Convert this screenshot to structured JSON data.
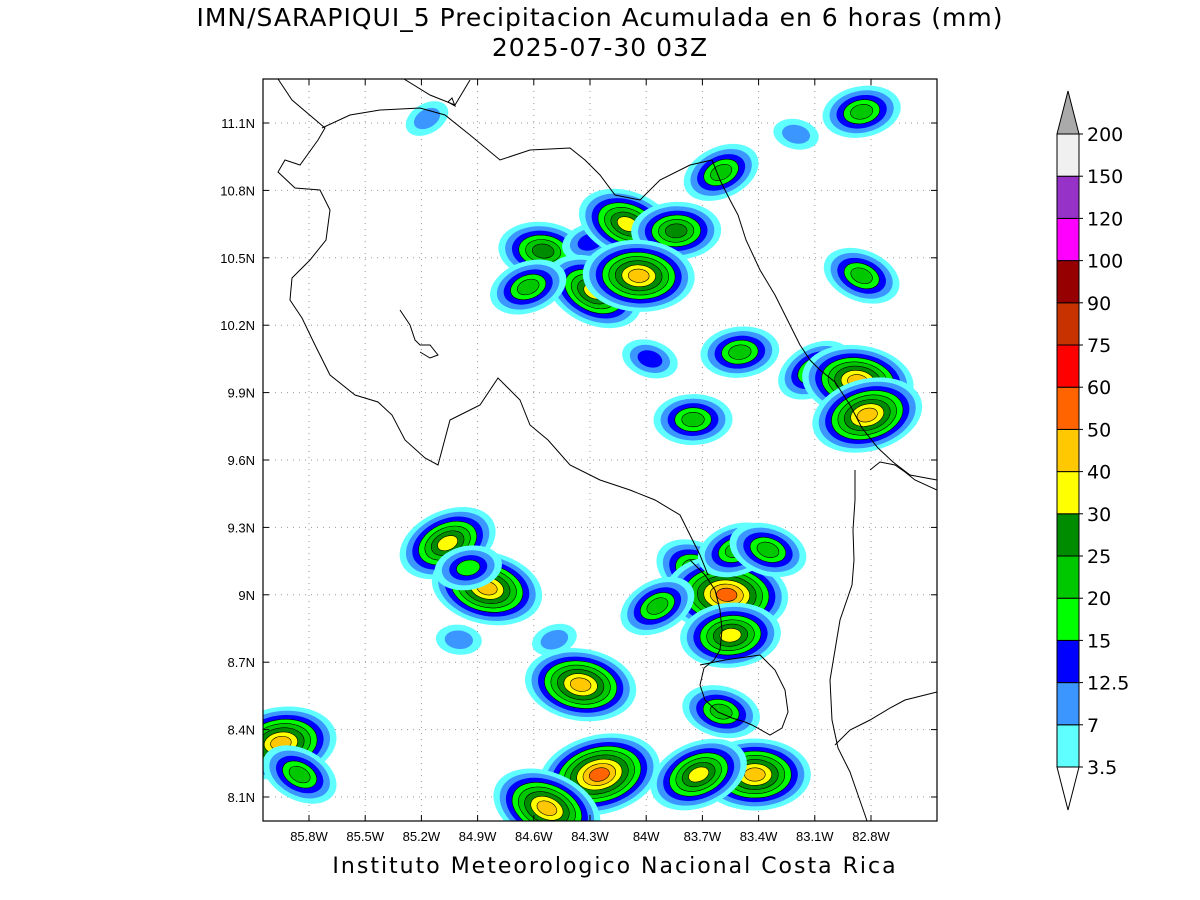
{
  "title": "IMN/SARAPIQUI_5 Precipitacion Acumulada en 6 horas (mm)",
  "subtitle": "2025-07-30 03Z",
  "footer": "Instituto Meteorologico Nacional Costa Rica",
  "map": {
    "lon_range": [
      -86.0,
      -83.0
    ],
    "lat_range": [
      8.0,
      11.2
    ],
    "lon_ticks": [
      {
        "value": -85.8,
        "label": "85.8W"
      },
      {
        "value": -85.5,
        "label": "85.5W"
      },
      {
        "value": -85.2,
        "label": "85.2W"
      },
      {
        "value": -84.9,
        "label": "84.9W"
      },
      {
        "value": -84.6,
        "label": "84.6W"
      },
      {
        "value": -84.3,
        "label": "84.3W"
      },
      {
        "value": -84.0,
        "label": "84W"
      },
      {
        "value": -83.7,
        "label": "83.7W"
      },
      {
        "value": -83.4,
        "label": "83.4W"
      },
      {
        "value": -83.1,
        "label": "83.1W"
      },
      {
        "value": -82.8,
        "label": "82.8W"
      }
    ],
    "lat_ticks": [
      {
        "value": 11.1,
        "label": "11.1N"
      },
      {
        "value": 10.8,
        "label": "10.8N"
      },
      {
        "value": 10.5,
        "label": "10.5N"
      },
      {
        "value": 10.2,
        "label": "10.2N"
      },
      {
        "value": 9.9,
        "label": "9.9N"
      },
      {
        "value": 9.6,
        "label": "9.6N"
      },
      {
        "value": 9.3,
        "label": "9.3N"
      },
      {
        "value": 9.0,
        "label": "9N"
      },
      {
        "value": 8.7,
        "label": "8.7N"
      },
      {
        "value": 8.4,
        "label": "8.4N"
      },
      {
        "value": 8.1,
        "label": "8.1N"
      }
    ],
    "grid": true
  },
  "colorbar": {
    "levels": [
      {
        "label": "3.5",
        "color": "#5fffff"
      },
      {
        "label": "7",
        "color": "#3c96ff"
      },
      {
        "label": "12.5",
        "color": "#0000ff"
      },
      {
        "label": "15",
        "color": "#00ff00"
      },
      {
        "label": "20",
        "color": "#00c800"
      },
      {
        "label": "25",
        "color": "#008c00"
      },
      {
        "label": "30",
        "color": "#ffff00"
      },
      {
        "label": "40",
        "color": "#ffc800"
      },
      {
        "label": "50",
        "color": "#ff6400"
      },
      {
        "label": "60",
        "color": "#ff0000"
      },
      {
        "label": "75",
        "color": "#c83200"
      },
      {
        "label": "90",
        "color": "#960000"
      },
      {
        "label": "100",
        "color": "#ff00ff"
      },
      {
        "label": "120",
        "color": "#9632c8"
      },
      {
        "label": "150",
        "color": "#f0f0f0"
      },
      {
        "label": "200",
        "color": "#aaaaaa"
      }
    ]
  },
  "precip_cells": [
    {
      "lon": -85.17,
      "lat": 11.12,
      "value": 7
    },
    {
      "lon": -84.55,
      "lat": 10.53,
      "value": 25
    },
    {
      "lon": -84.3,
      "lat": 10.57,
      "value": 12.5
    },
    {
      "lon": -84.1,
      "lat": 10.65,
      "value": 30
    },
    {
      "lon": -83.84,
      "lat": 10.62,
      "value": 25
    },
    {
      "lon": -83.6,
      "lat": 10.88,
      "value": 20
    },
    {
      "lon": -83.2,
      "lat": 11.05,
      "value": 7
    },
    {
      "lon": -82.85,
      "lat": 11.15,
      "value": 20
    },
    {
      "lon": -84.28,
      "lat": 10.35,
      "value": 30
    },
    {
      "lon": -84.04,
      "lat": 10.42,
      "value": 40
    },
    {
      "lon": -84.63,
      "lat": 10.37,
      "value": 20
    },
    {
      "lon": -83.98,
      "lat": 10.05,
      "value": 12.5
    },
    {
      "lon": -83.5,
      "lat": 10.08,
      "value": 20
    },
    {
      "lon": -83.1,
      "lat": 10.0,
      "value": 20
    },
    {
      "lon": -82.87,
      "lat": 9.95,
      "value": 40
    },
    {
      "lon": -82.82,
      "lat": 9.8,
      "value": 40
    },
    {
      "lon": -82.85,
      "lat": 10.42,
      "value": 20
    },
    {
      "lon": -83.75,
      "lat": 9.78,
      "value": 20
    },
    {
      "lon": -85.06,
      "lat": 9.23,
      "value": 30
    },
    {
      "lon": -84.85,
      "lat": 9.03,
      "value": 40
    },
    {
      "lon": -84.95,
      "lat": 9.12,
      "value": 15
    },
    {
      "lon": -83.72,
      "lat": 9.1,
      "value": 25
    },
    {
      "lon": -83.57,
      "lat": 9.0,
      "value": 50
    },
    {
      "lon": -83.52,
      "lat": 9.2,
      "value": 20
    },
    {
      "lon": -83.35,
      "lat": 9.2,
      "value": 20
    },
    {
      "lon": -83.55,
      "lat": 8.82,
      "value": 30
    },
    {
      "lon": -83.94,
      "lat": 8.95,
      "value": 20
    },
    {
      "lon": -84.35,
      "lat": 8.6,
      "value": 40
    },
    {
      "lon": -84.25,
      "lat": 8.2,
      "value": 50
    },
    {
      "lon": -84.53,
      "lat": 8.05,
      "value": 40
    },
    {
      "lon": -83.42,
      "lat": 8.2,
      "value": 40
    },
    {
      "lon": -83.72,
      "lat": 8.2,
      "value": 30
    },
    {
      "lon": -83.6,
      "lat": 8.48,
      "value": 20
    },
    {
      "lon": -85.95,
      "lat": 8.34,
      "value": 40
    },
    {
      "lon": -85.85,
      "lat": 8.2,
      "value": 20
    },
    {
      "lon": -85.0,
      "lat": 8.8,
      "value": 7
    },
    {
      "lon": -84.49,
      "lat": 8.8,
      "value": 7
    }
  ]
}
